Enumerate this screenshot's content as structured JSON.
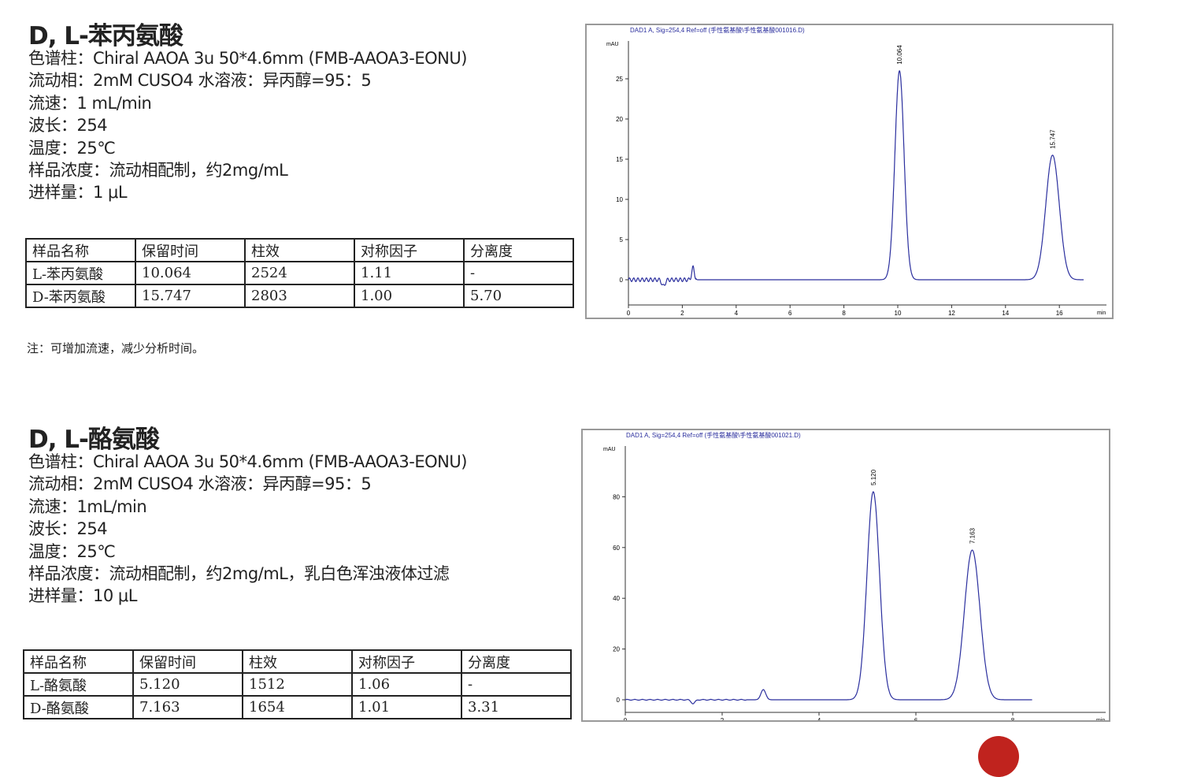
{
  "sections": [
    {
      "title": "D, L-苯丙氨酸",
      "info": [
        "色谱柱：Chiral AAOA 3u 50*4.6mm (FMB-AAOA3-EONU)",
        "流动相：2mM CUSO4 水溶液：异丙醇=95：5",
        "流速：1 mL/min",
        "波长：254",
        "温度：25℃",
        "样品浓度：流动相配制，约2mg/mL",
        "进样量：1 μL"
      ],
      "table": {
        "headers": [
          "样品名称",
          "保留时间",
          "柱效",
          "对称因子",
          "分离度"
        ],
        "rows": [
          [
            "L-苯丙氨酸",
            "10.064",
            "2524",
            "1.11",
            "-"
          ],
          [
            "D-苯丙氨酸",
            "15.747",
            "2803",
            "1.00",
            "5.70"
          ]
        ]
      },
      "note": "注：可增加流速，减少分析时间。"
    },
    {
      "title": "D, L-酪氨酸",
      "info": [
        "色谱柱：Chiral AAOA 3u 50*4.6mm (FMB-AAOA3-EONU)",
        "流动相：2mM CUSO4 水溶液：异丙醇=95：5",
        "流速：1mL/min",
        "波长：254",
        "温度：25℃",
        "样品浓度：流动相配制，约2mg/mL，乳白色浑浊液体过滤",
        "进样量：10 μL"
      ],
      "table": {
        "headers": [
          "样品名称",
          "保留时间",
          "柱效",
          "对称因子",
          "分离度"
        ],
        "rows": [
          [
            "L-酪氨酸",
            "5.120",
            "1512",
            "1.06",
            "-"
          ],
          [
            "D-酪氨酸",
            "7.163",
            "1654",
            "1.01",
            "3.31"
          ]
        ]
      }
    }
  ],
  "chart_data": [
    {
      "type": "line",
      "title": "DAD1 A, Sig=254,4 Ref=off (手性氨基酸\\手性氨基酸001016.D)",
      "ylabel": "mAU",
      "xlabel": "min",
      "xlim": [
        0,
        17.5
      ],
      "ylim": [
        -3,
        30
      ],
      "xticks": [
        0,
        2,
        4,
        6,
        8,
        10,
        12,
        14,
        16
      ],
      "yticks": [
        0,
        5,
        10,
        15,
        20,
        25
      ],
      "peaks": [
        {
          "rt": 10.064,
          "height": 26,
          "label": "10.064"
        },
        {
          "rt": 15.747,
          "height": 15.5,
          "label": "15.747"
        }
      ],
      "x_end": 16.9,
      "color": "#2b2f9e"
    },
    {
      "type": "line",
      "title": "DAD1 A, Sig=254,4 Ref=off (手性氨基酸\\手性氨基酸001021.D)",
      "ylabel": "mAU",
      "xlabel": "min",
      "xlim": [
        0,
        9.9
      ],
      "ylim": [
        -5,
        98
      ],
      "xticks": [
        0,
        2,
        4,
        6,
        8
      ],
      "yticks": [
        0,
        20,
        40,
        60,
        80
      ],
      "peaks": [
        {
          "rt": 5.12,
          "height": 82,
          "label": "5.120"
        },
        {
          "rt": 7.163,
          "height": 59,
          "label": "7.163"
        }
      ],
      "x_end": 8.4,
      "color": "#2b2f9e"
    }
  ]
}
